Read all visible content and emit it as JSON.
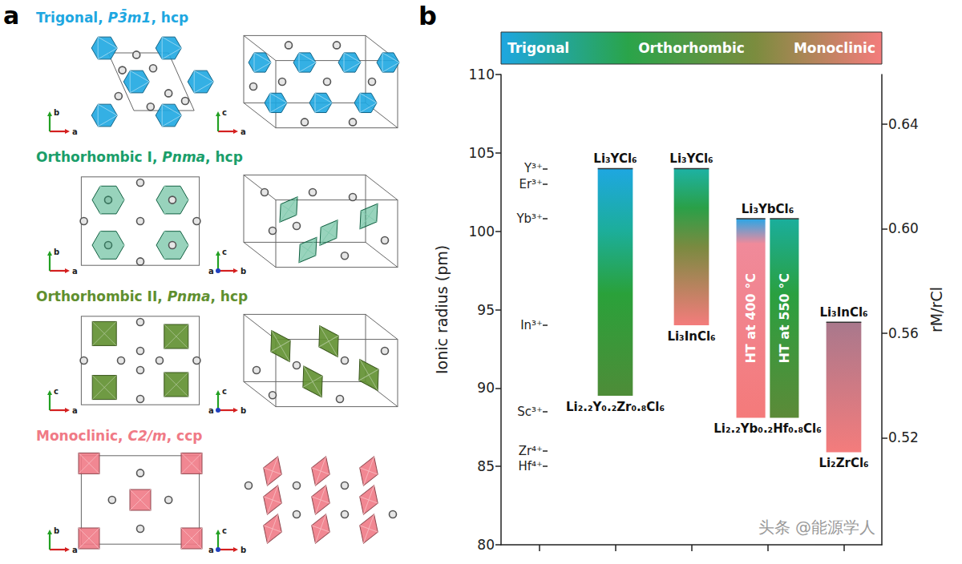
{
  "panel_a": {
    "letter": "a",
    "structures": [
      {
        "title": "Trigonal, P3̄m1, hcp",
        "space_group": "P3̄m1",
        "color": "#1ea7e1",
        "axes": [
          [
            "a",
            "b"
          ],
          [
            "a",
            "c"
          ]
        ]
      },
      {
        "title": "Orthorhombic I, Pnma, hcp",
        "space_group": "Pnma",
        "color": "#1a9e6a",
        "axes": [
          [
            "a",
            "b"
          ],
          [
            "b",
            "c",
            "a"
          ]
        ]
      },
      {
        "title": "Orthorhombic II, Pnma, hcp",
        "space_group": "Pnma",
        "color": "#5f8f2f",
        "axes": [
          [
            "a",
            "c"
          ],
          [
            "b",
            "c",
            "a"
          ]
        ]
      },
      {
        "title": "Monoclinic, C2/m, ccp",
        "space_group": "C2/m",
        "color": "#f07a86",
        "axes": [
          [
            "a",
            "b"
          ],
          [
            "b",
            "c",
            "a"
          ]
        ]
      }
    ]
  },
  "chart_data": {
    "type": "range_bar",
    "letter": "b",
    "ylabel": "Ionic radius (pm)",
    "ylim": [
      80,
      110
    ],
    "yticks": [
      80,
      85,
      90,
      95,
      100,
      105,
      110
    ],
    "y2label": "rM/rCl",
    "y2lim": [
      0.479,
      0.659
    ],
    "y2ticks": [
      0.52,
      0.56,
      {
        "value": 0.6,
        "label": "0.60"
      },
      0.64
    ],
    "ion_ticks": [
      {
        "value": 104,
        "label": "Y³⁺"
      },
      {
        "value": 103,
        "label": "Er³⁺"
      },
      {
        "value": 100.8,
        "label": "Yb³⁺"
      },
      {
        "value": 94,
        "label": "In³⁺"
      },
      {
        "value": 88.5,
        "label": "Sc³⁺"
      },
      {
        "value": 86,
        "label": "Zr⁴⁺"
      },
      {
        "value": 85,
        "label": "Hf⁴⁺"
      }
    ],
    "categories": [
      null,
      null,
      null,
      null,
      null
    ],
    "phase_scale": {
      "labels": [
        "Trigonal",
        "Orthorhombic",
        "Monoclinic"
      ],
      "colors": [
        "#1ea7e1",
        "#2aa44a",
        "#7b8c3e",
        "#f47c7c"
      ]
    },
    "bars": [
      {
        "x": 1,
        "low": 89.5,
        "high": 104,
        "top_label": "Li₃YCl₆",
        "bottom_label": "Li₂.₂Y₀.₂Zr₀.₈Cl₆",
        "parts": [
          {
            "gradient": [
              {
                "at": 104,
                "color": "#1ea7e1"
              },
              {
                "at": 100,
                "color": "#1cae9a"
              },
              {
                "at": 96,
                "color": "#2aa13a"
              },
              {
                "at": 89.5,
                "color": "#4e8c38"
              }
            ]
          }
        ]
      },
      {
        "x": 2,
        "low": 94,
        "high": 104,
        "top_label": "Li₃YCl₆",
        "bottom_label": "Li₃InCl₆",
        "parts": [
          {
            "gradient": [
              {
                "at": 104,
                "color": "#1db2a4"
              },
              {
                "at": 101.5,
                "color": "#2aa048"
              },
              {
                "at": 99,
                "color": "#7a8a40"
              },
              {
                "at": 94,
                "color": "#f47c7c"
              }
            ]
          }
        ]
      },
      {
        "x": 3,
        "low": 88.1,
        "high": 100.8,
        "top_label": "Li₃YbCl₆",
        "bottom_label": "Li₂.₂Yb₀.₂Hf₀.₈Cl₆",
        "parts": [
          {
            "text": "HT at 400 °C",
            "gradient": [
              {
                "at": 100.8,
                "color": "#2aa6e6"
              },
              {
                "at": 99.2,
                "color": "#f08a9a"
              },
              {
                "at": 88.1,
                "color": "#f47a7a"
              }
            ]
          },
          {
            "text": "HT at 550 °C",
            "gradient": [
              {
                "at": 100.8,
                "color": "#1aae9c"
              },
              {
                "at": 96,
                "color": "#2aa040"
              },
              {
                "at": 88.1,
                "color": "#5c8a38"
              }
            ]
          }
        ]
      },
      {
        "x": 4,
        "low": 85.9,
        "high": 94.2,
        "top_label": "Li₃InCl₆",
        "bottom_label": "Li₂ZrCl₆",
        "parts": [
          {
            "gradient": [
              {
                "at": 94.2,
                "color": "#a9788c"
              },
              {
                "at": 85.9,
                "color": "#f47c7c"
              }
            ]
          }
        ]
      }
    ],
    "grid": false,
    "watermark": "头条 @能源学人"
  }
}
